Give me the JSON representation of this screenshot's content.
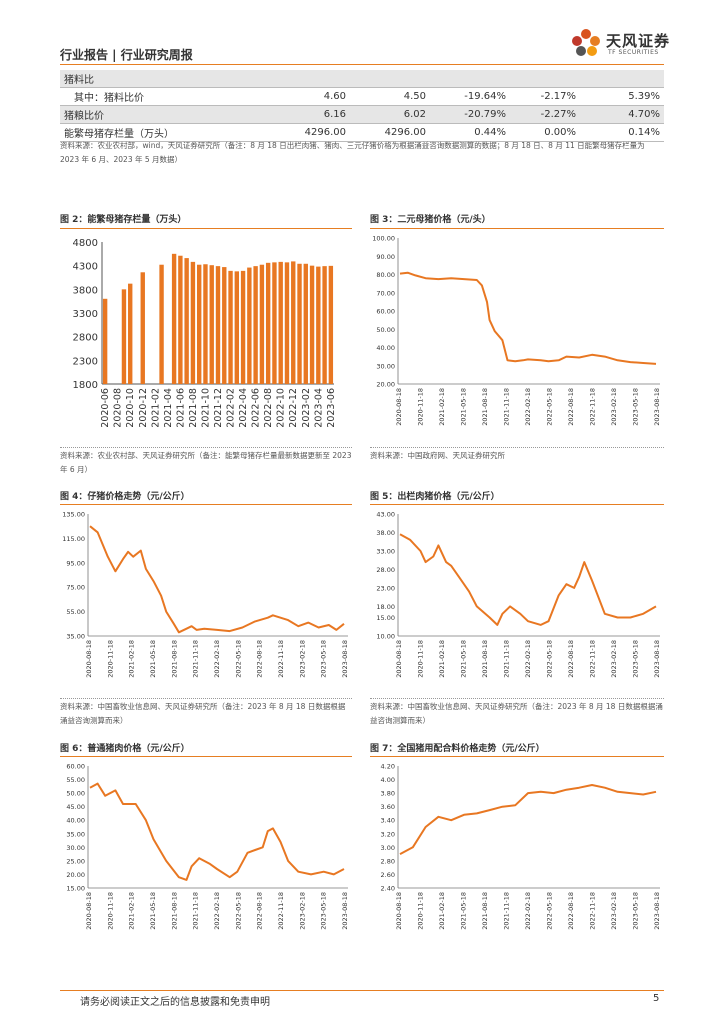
{
  "header": {
    "title": "行业报告 | 行业研究周报",
    "logo_cn": "天风证券",
    "logo_en": "TF SECURITIES"
  },
  "table": {
    "rows": [
      {
        "label": "猪料比",
        "v1": "",
        "v2": "",
        "v3": "",
        "v4": "",
        "v5": "",
        "shaded": true,
        "indent": false
      },
      {
        "label": "其中：猪料比价",
        "v1": "4.60",
        "v2": "4.50",
        "v3": "-19.64%",
        "v4": "-2.17%",
        "v5": "5.39%",
        "shaded": false,
        "indent": true
      },
      {
        "label": "猪粮比价",
        "v1": "6.16",
        "v2": "6.02",
        "v3": "-20.79%",
        "v4": "-2.27%",
        "v5": "4.70%",
        "shaded": true,
        "indent": false
      },
      {
        "label": "能繁母猪存栏量（万头）",
        "v1": "4296.00",
        "v2": "4296.00",
        "v3": "0.44%",
        "v4": "0.00%",
        "v5": "0.14%",
        "shaded": false,
        "indent": false
      }
    ]
  },
  "table_source": "资料来源：农业农村部，wind，天风证券研究所（备注：8 月 18 日出栏肉猪、猪肉、三元仔猪价格为根据涌益咨询数据测算的数据；8 月 18 日、8 月 11 日能繁母猪存栏量为 2023 年 6 月、2023 年 5 月数据）",
  "figures": [
    {
      "title": "图 2：能繁母猪存栏量（万头）",
      "source": "资料来源：农业农村部、天风证券研究所（备注：能繁母猪存栏量最新数据更新至 2023 年 6 月）"
    },
    {
      "title": "图 3：二元母猪价格（元/头）",
      "source": "资料来源：中国政府网、天风证券研究所"
    },
    {
      "title": "图 4：仔猪价格走势（元/公斤）",
      "source": "资料来源：中国畜牧业信息网、天风证券研究所（备注：2023 年 8 月 18 日数据根据涌益咨询测算而来）"
    },
    {
      "title": "图 5：出栏肉猪价格（元/公斤）",
      "source": "资料来源：中国畜牧业信息网、天风证券研究所（备注：2023 年 8 月 18 日数据根据涌益咨询测算而来）"
    },
    {
      "title": "图 6：普通猪肉价格（元/公斤）",
      "source": ""
    },
    {
      "title": "图 7：全国猪用配合料价格走势（元/公斤）",
      "source": ""
    }
  ],
  "colors": {
    "accent": "#e67e22",
    "series": "#e87722",
    "text": "#333333"
  },
  "chart_data": [
    {
      "id": "fig2",
      "type": "bar",
      "ylim": [
        1800,
        4800
      ],
      "yticks": [
        1800,
        2300,
        2800,
        3300,
        3800,
        4300,
        4800
      ],
      "categories": [
        "2020-06",
        "2020-07",
        "2020-08",
        "2020-09",
        "2020-10",
        "2020-11",
        "2020-12",
        "2021-01",
        "2021-02",
        "2021-03",
        "2021-04",
        "2021-05",
        "2021-06",
        "2021-07",
        "2021-08",
        "2021-09",
        "2021-10",
        "2021-11",
        "2021-12",
        "2022-01",
        "2022-02",
        "2022-03",
        "2022-04",
        "2022-05",
        "2022-06",
        "2022-07",
        "2022-08",
        "2022-09",
        "2022-10",
        "2022-11",
        "2022-12",
        "2023-01",
        "2023-02",
        "2023-03",
        "2023-04",
        "2023-05",
        "2023-06"
      ],
      "values": [
        3600,
        null,
        null,
        3800,
        3920,
        null,
        4160,
        null,
        null,
        4320,
        null,
        4550,
        4510,
        4460,
        4380,
        4320,
        4330,
        4310,
        4290,
        4270,
        4190,
        4180,
        4190,
        4260,
        4290,
        4320,
        4360,
        4370,
        4380,
        4370,
        4390,
        4340,
        4340,
        4300,
        4280,
        4290,
        4296
      ],
      "xticklabels": [
        "2020-06",
        "2020-08",
        "2020-10",
        "2020-12",
        "2021-02",
        "2021-04",
        "2021-06",
        "2021-08",
        "2021-10",
        "2021-12",
        "2022-02",
        "2022-04",
        "2022-06",
        "2022-08",
        "2022-10",
        "2022-12",
        "2023-02",
        "2023-04",
        "2023-06"
      ]
    },
    {
      "id": "fig3",
      "type": "line",
      "ylim": [
        20,
        100
      ],
      "yticks": [
        "20.00",
        "30.00",
        "40.00",
        "50.00",
        "60.00",
        "70.00",
        "80.00",
        "90.00",
        "100.00"
      ],
      "xticklabels": [
        "2020-08-18",
        "2020-11-18",
        "2021-02-18",
        "2021-05-18",
        "2021-08-18",
        "2021-11-18",
        "2022-02-18",
        "2022-05-18",
        "2022-08-18",
        "2022-11-18",
        "2023-02-18",
        "2023-05-18",
        "2023-08-18"
      ],
      "x": [
        0,
        0.03,
        0.06,
        0.1,
        0.15,
        0.2,
        0.3,
        0.32,
        0.34,
        0.35,
        0.37,
        0.4,
        0.42,
        0.45,
        0.48,
        0.5,
        0.55,
        0.58,
        0.62,
        0.65,
        0.7,
        0.75,
        0.8,
        0.85,
        0.9,
        0.95,
        1
      ],
      "y": [
        80.5,
        81,
        79.5,
        78,
        77.5,
        78,
        77,
        74,
        65,
        55,
        49,
        44,
        33,
        32.5,
        33,
        33.5,
        33,
        32.5,
        33,
        35,
        34.5,
        36,
        35,
        33,
        32,
        31.5,
        31
      ]
    },
    {
      "id": "fig4",
      "type": "line",
      "ylim": [
        35,
        135
      ],
      "yticks": [
        "35.00",
        "55.00",
        "75.00",
        "95.00",
        "115.00",
        "135.00"
      ],
      "xticklabels": [
        "2020-08-18",
        "2020-11-18",
        "2021-02-18",
        "2021-05-18",
        "2021-08-18",
        "2021-11-18",
        "2022-02-18",
        "2022-05-18",
        "2022-08-18",
        "2022-11-18",
        "2023-02-18",
        "2023-05-18",
        "2023-08-18"
      ],
      "x": [
        0,
        0.03,
        0.07,
        0.1,
        0.13,
        0.15,
        0.17,
        0.2,
        0.22,
        0.25,
        0.28,
        0.3,
        0.33,
        0.35,
        0.38,
        0.4,
        0.42,
        0.45,
        0.5,
        0.55,
        0.6,
        0.65,
        0.7,
        0.72,
        0.75,
        0.78,
        0.82,
        0.86,
        0.9,
        0.94,
        0.97,
        1
      ],
      "y": [
        125,
        120,
        100,
        88,
        98,
        104,
        100,
        105,
        90,
        80,
        68,
        55,
        45,
        38,
        41,
        43,
        40,
        41,
        40,
        39,
        42,
        47,
        50,
        52,
        50,
        48,
        43,
        46,
        42,
        44,
        40,
        45
      ]
    },
    {
      "id": "fig5",
      "type": "line",
      "ylim": [
        10,
        43
      ],
      "yticks": [
        "10.00",
        "15.00",
        "18.00",
        "23.00",
        "28.00",
        "33.00",
        "38.00",
        "43.00"
      ],
      "xticklabels": [
        "2020-08-18",
        "2020-11-18",
        "2021-02-18",
        "2021-05-18",
        "2021-08-18",
        "2021-11-18",
        "2022-02-18",
        "2022-05-18",
        "2022-08-18",
        "2022-11-18",
        "2023-02-18",
        "2023-05-18",
        "2023-08-18"
      ],
      "x": [
        0,
        0.04,
        0.08,
        0.1,
        0.13,
        0.15,
        0.18,
        0.2,
        0.23,
        0.27,
        0.3,
        0.35,
        0.38,
        0.4,
        0.43,
        0.47,
        0.5,
        0.55,
        0.58,
        0.62,
        0.65,
        0.68,
        0.7,
        0.72,
        0.75,
        0.8,
        0.85,
        0.9,
        0.95,
        1
      ],
      "y": [
        37.5,
        36,
        33,
        30,
        31.5,
        34.5,
        30,
        29,
        26,
        22,
        18,
        15,
        13,
        16,
        18,
        16,
        14,
        13,
        14,
        21,
        24,
        23,
        26,
        30,
        25,
        16,
        15,
        15,
        16,
        18
      ]
    },
    {
      "id": "fig6",
      "type": "line",
      "ylim": [
        15,
        60
      ],
      "yticks": [
        "15.00",
        "20.00",
        "25.00",
        "30.00",
        "35.00",
        "40.00",
        "45.00",
        "50.00",
        "55.00",
        "60.00"
      ],
      "xticklabels": [
        "2020-08-18",
        "2020-11-18",
        "2021-02-18",
        "2021-05-18",
        "2021-08-18",
        "2021-11-18",
        "2022-02-18",
        "2022-05-18",
        "2022-08-18",
        "2022-11-18",
        "2023-02-18",
        "2023-05-18",
        "2023-08-18"
      ],
      "x": [
        0,
        0.03,
        0.06,
        0.1,
        0.13,
        0.18,
        0.22,
        0.25,
        0.3,
        0.35,
        0.38,
        0.4,
        0.43,
        0.47,
        0.5,
        0.55,
        0.58,
        0.62,
        0.65,
        0.68,
        0.7,
        0.72,
        0.75,
        0.78,
        0.82,
        0.87,
        0.92,
        0.96,
        1
      ],
      "y": [
        52,
        53.5,
        49,
        51,
        46,
        46,
        40,
        33,
        25,
        19,
        18,
        23,
        26,
        24,
        22,
        19,
        21,
        28,
        29,
        30,
        36,
        37,
        32,
        25,
        21,
        20,
        21,
        20,
        22
      ]
    },
    {
      "id": "fig7",
      "type": "line",
      "ylim": [
        2.4,
        4.2
      ],
      "yticks": [
        "2.40",
        "2.60",
        "2.80",
        "3.00",
        "3.20",
        "3.40",
        "3.60",
        "3.80",
        "4.00",
        "4.20"
      ],
      "xticklabels": [
        "2020-08-18",
        "2020-11-18",
        "2021-02-18",
        "2021-05-18",
        "2021-08-18",
        "2021-11-18",
        "2022-02-18",
        "2022-05-18",
        "2022-08-18",
        "2022-11-18",
        "2023-02-18",
        "2023-05-18",
        "2023-08-18"
      ],
      "x": [
        0,
        0.05,
        0.1,
        0.15,
        0.2,
        0.25,
        0.3,
        0.35,
        0.4,
        0.45,
        0.5,
        0.55,
        0.6,
        0.65,
        0.7,
        0.75,
        0.8,
        0.85,
        0.9,
        0.95,
        1
      ],
      "y": [
        2.9,
        3.0,
        3.3,
        3.45,
        3.4,
        3.48,
        3.5,
        3.55,
        3.6,
        3.62,
        3.8,
        3.82,
        3.8,
        3.85,
        3.88,
        3.92,
        3.88,
        3.82,
        3.8,
        3.78,
        3.82
      ]
    }
  ],
  "footer": {
    "disclaimer": "请务必阅读正文之后的信息披露和免责申明",
    "page": "5"
  }
}
